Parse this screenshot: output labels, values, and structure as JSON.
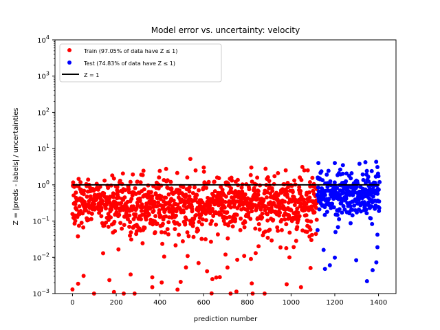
{
  "chart_data": {
    "type": "scatter",
    "title": "Model error vs. uncertainty: velocity",
    "xlabel": "prediction number",
    "ylabel": "Z = |preds - labels| / uncertainties",
    "xlim": [
      -80,
      1480
    ],
    "ylim": [
      0.001,
      10000
    ],
    "yscale": "log",
    "xticks": [
      0,
      200,
      400,
      600,
      800,
      1000,
      1200,
      1400
    ],
    "xtick_labels": [
      "0",
      "200",
      "400",
      "600",
      "800",
      "1000",
      "1200",
      "1400"
    ],
    "yticks": [
      0.001,
      0.01,
      0.1,
      1,
      10,
      100,
      1000,
      10000
    ],
    "ytick_labels": [
      {
        "base": "10",
        "exp": "−3"
      },
      {
        "base": "10",
        "exp": "−2"
      },
      {
        "base": "10",
        "exp": "−1"
      },
      {
        "base": "10",
        "exp": "0"
      },
      {
        "base": "10",
        "exp": "1"
      },
      {
        "base": "10",
        "exp": "2"
      },
      {
        "base": "10",
        "exp": "3"
      },
      {
        "base": "10",
        "exp": "4"
      }
    ],
    "legend_position": "upper-left",
    "series": [
      {
        "name": "Train (97.05% of data have Z  ≤  1)",
        "kind": "points",
        "color": "#ff0000",
        "x_range": [
          0,
          1120
        ],
        "count": 1120,
        "median_z": 0.28,
        "log10_spread": 0.38,
        "fraction_below_1": 0.9705,
        "notable_points": [
          {
            "x": 0,
            "y": 0.0013
          },
          {
            "x": 190,
            "y": 0.0011
          },
          {
            "x": 365,
            "y": 0.0015
          },
          {
            "x": 365,
            "y": 0.0028
          },
          {
            "x": 495,
            "y": 0.0021
          },
          {
            "x": 640,
            "y": 0.0025
          },
          {
            "x": 820,
            "y": 0.0019
          },
          {
            "x": 980,
            "y": 0.0018
          },
          {
            "x": 940,
            "y": 2.1
          },
          {
            "x": 1040,
            "y": 1.6
          },
          {
            "x": 190,
            "y": 1.5
          }
        ]
      },
      {
        "name": "Test (74.83% of data have Z  ≤  1)",
        "kind": "points",
        "color": "#0000ff",
        "x_range": [
          1120,
          1405
        ],
        "count": 300,
        "median_z": 0.6,
        "log10_spread": 0.35,
        "fraction_below_1": 0.7483,
        "notable_points": [
          {
            "x": 1200,
            "y": 0.0098
          },
          {
            "x": 1155,
            "y": 0.0048
          },
          {
            "x": 1395,
            "y": 0.019
          },
          {
            "x": 1395,
            "y": 0.042
          },
          {
            "x": 1340,
            "y": 4.2
          },
          {
            "x": 1125,
            "y": 4.0
          },
          {
            "x": 1200,
            "y": 4.0
          },
          {
            "x": 1395,
            "y": 3.1
          }
        ]
      },
      {
        "name": "Z = 1",
        "kind": "line",
        "color": "#000000",
        "x": [
          0,
          1405
        ],
        "y": [
          1,
          1
        ]
      }
    ]
  }
}
